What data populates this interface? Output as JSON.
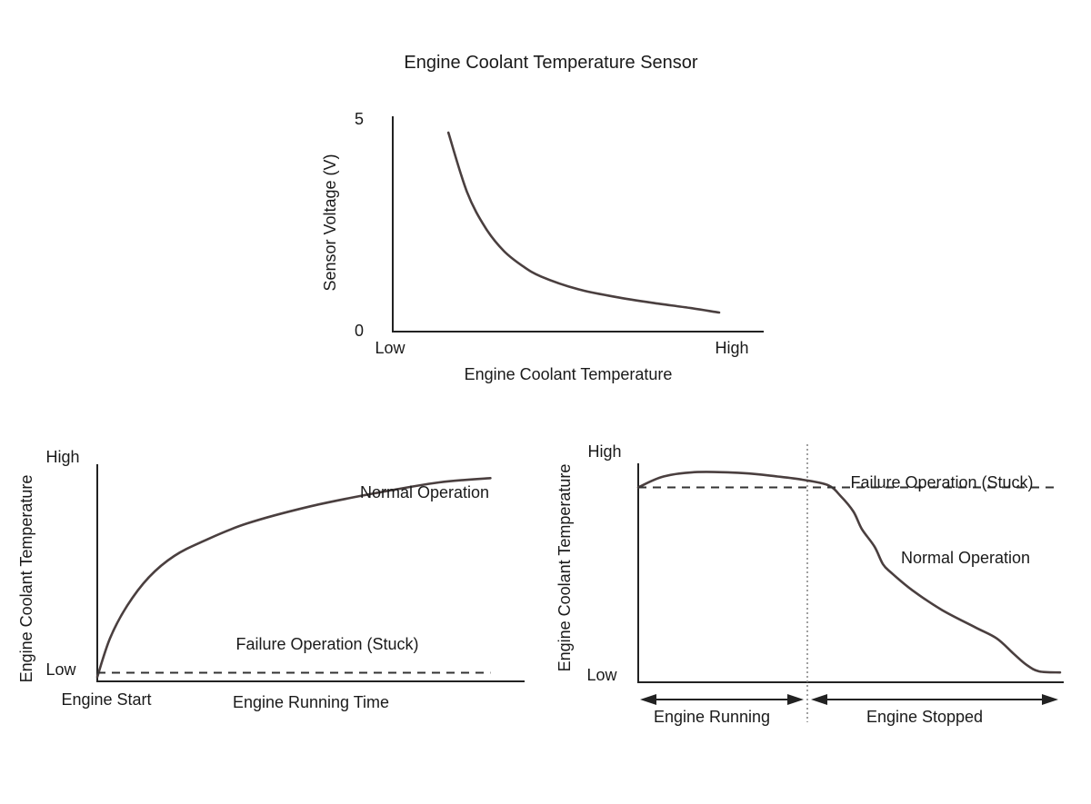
{
  "title": "Engine Coolant Temperature Sensor",
  "chart_data": [
    {
      "id": "sensor",
      "type": "line",
      "xlabel": "Engine Coolant Temperature",
      "ylabel": "Sensor Voltage (V)",
      "xticks": [
        "Low",
        "High"
      ],
      "yticks": [
        "0",
        "5"
      ],
      "xlim": [
        0,
        1
      ],
      "ylim": [
        0,
        5
      ],
      "series": [
        {
          "x": [
            0.15,
            0.2,
            0.25,
            0.3,
            0.35,
            0.4,
            0.5,
            0.6,
            0.7,
            0.8,
            0.88
          ],
          "y": [
            4.7,
            3.3,
            2.45,
            1.9,
            1.55,
            1.3,
            1.0,
            0.82,
            0.68,
            0.56,
            0.45
          ]
        }
      ]
    },
    {
      "id": "running",
      "type": "line",
      "xlabel": "Engine Running Time",
      "ylabel": "Engine Coolant Temperature",
      "xticks": [
        "Engine Start"
      ],
      "yticks": [
        "Low",
        "High"
      ],
      "xlim": [
        0,
        1
      ],
      "ylim": [
        0,
        1
      ],
      "series": [
        {
          "name": "Normal Operation",
          "x": [
            0,
            0.03,
            0.07,
            0.12,
            0.18,
            0.25,
            0.35,
            0.5,
            0.65,
            0.8,
            0.92
          ],
          "y": [
            0.02,
            0.2,
            0.35,
            0.48,
            0.58,
            0.65,
            0.73,
            0.81,
            0.87,
            0.92,
            0.94
          ]
        },
        {
          "name": "Failure Operation (Stuck)",
          "x": [
            0,
            0.92
          ],
          "y": [
            0.04,
            0.04
          ],
          "style": "dashed"
        }
      ]
    },
    {
      "id": "stopped",
      "type": "line",
      "ylabel": "Engine Coolant Temperature",
      "yticks": [
        "Low",
        "High"
      ],
      "phases": [
        "Engine Running",
        "Engine Stopped"
      ],
      "phase_split": 0.39,
      "xlim": [
        0,
        1
      ],
      "ylim": [
        0,
        1
      ],
      "series": [
        {
          "name": "Normal Operation",
          "x": [
            0,
            0.06,
            0.14,
            0.25,
            0.33,
            0.39,
            0.45,
            0.48,
            0.51,
            0.53,
            0.56,
            0.58,
            0.6,
            0.65,
            0.72,
            0.8,
            0.85,
            0.89,
            0.92,
            0.95,
            1.0
          ],
          "y": [
            0.89,
            0.94,
            0.96,
            0.955,
            0.94,
            0.925,
            0.9,
            0.85,
            0.78,
            0.7,
            0.62,
            0.54,
            0.5,
            0.42,
            0.33,
            0.25,
            0.2,
            0.13,
            0.08,
            0.05,
            0.045
          ]
        },
        {
          "name": "Failure Operation (Stuck)",
          "x": [
            0,
            1.0
          ],
          "y": [
            0.89,
            0.89
          ],
          "style": "dashed"
        }
      ]
    }
  ]
}
